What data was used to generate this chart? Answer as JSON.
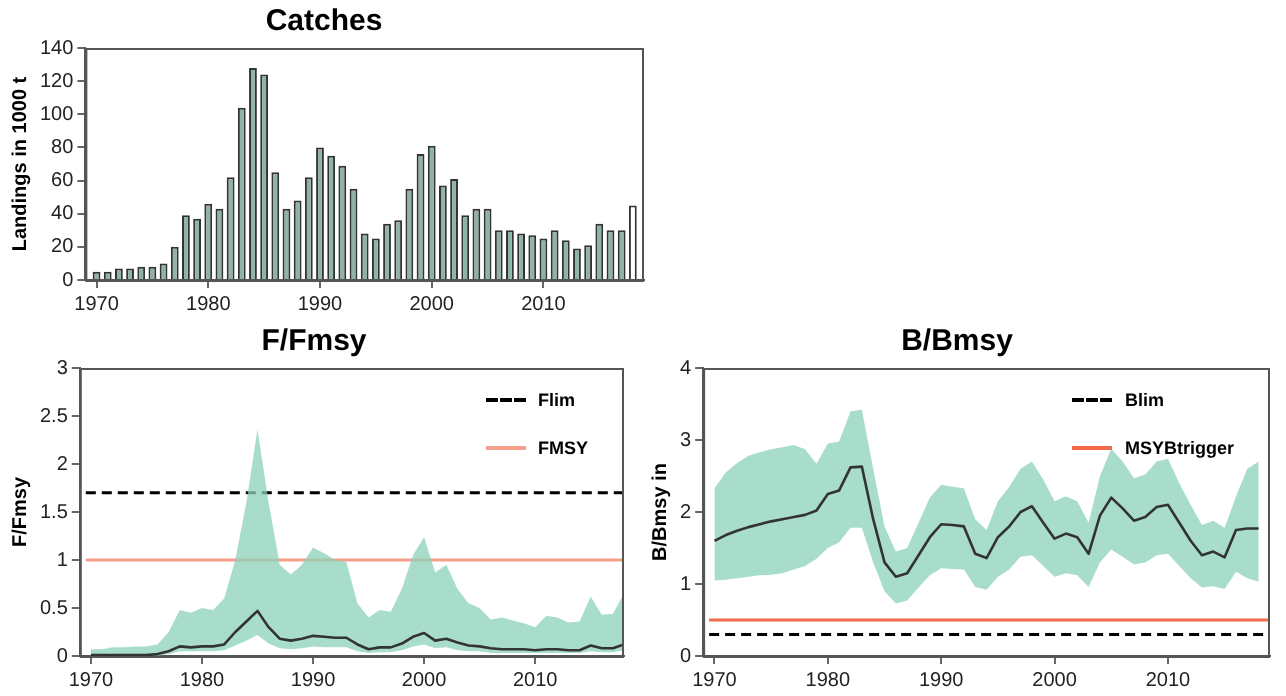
{
  "chart_data": [
    {
      "type": "bar",
      "title": "Catches",
      "ylabel": "Landings in 1000 t",
      "grid": false,
      "x": [
        1970,
        1971,
        1972,
        1973,
        1974,
        1975,
        1976,
        1977,
        1978,
        1979,
        1980,
        1981,
        1982,
        1983,
        1984,
        1985,
        1986,
        1987,
        1988,
        1989,
        1990,
        1991,
        1992,
        1993,
        1994,
        1995,
        1996,
        1997,
        1998,
        1999,
        2000,
        2001,
        2002,
        2003,
        2004,
        2005,
        2006,
        2007,
        2008,
        2009,
        2010,
        2011,
        2012,
        2013,
        2014,
        2015,
        2016,
        2017,
        2018
      ],
      "values": [
        5,
        5,
        7,
        7,
        8,
        8,
        10,
        20,
        39,
        37,
        46,
        43,
        62,
        104,
        128,
        124,
        65,
        43,
        48,
        62,
        80,
        75,
        69,
        55,
        28,
        25,
        34,
        36,
        55,
        76,
        81,
        57,
        61,
        39,
        43,
        43,
        30,
        30,
        28,
        27,
        25,
        30,
        24,
        19,
        21,
        34,
        30,
        30,
        45
      ],
      "colors": [
        "#8fb3a5",
        "#8fb3a5",
        "#8fb3a5",
        "#8fb3a5",
        "#8fb3a5",
        "#8fb3a5",
        "#8fb3a5",
        "#8fb3a5",
        "#8fb3a5",
        "#8fb3a5",
        "#8fb3a5",
        "#8fb3a5",
        "#8fb3a5",
        "#8fb3a5",
        "#8fb3a5",
        "#8fb3a5",
        "#8fb3a5",
        "#8fb3a5",
        "#8fb3a5",
        "#8fb3a5",
        "#8fb3a5",
        "#8fb3a5",
        "#8fb3a5",
        "#8fb3a5",
        "#8fb3a5",
        "#8fb3a5",
        "#8fb3a5",
        "#8fb3a5",
        "#8fb3a5",
        "#8fb3a5",
        "#8fb3a5",
        "#8fb3a5",
        "#8fb3a5",
        "#8fb3a5",
        "#8fb3a5",
        "#8fb3a5",
        "#8fb3a5",
        "#8fb3a5",
        "#8fb3a5",
        "#8fb3a5",
        "#8fb3a5",
        "#8fb3a5",
        "#8fb3a5",
        "#8fb3a5",
        "#8fb3a5",
        "#8fb3a5",
        "#8fb3a5",
        "#8fb3a5",
        "#ffffff"
      ],
      "xlim": [
        1969,
        2019
      ],
      "xticks": [
        1970,
        1980,
        1990,
        2000,
        2010
      ],
      "ylim": [
        0,
        140
      ],
      "yticks": [
        0,
        20,
        40,
        60,
        80,
        100,
        120,
        140
      ]
    },
    {
      "type": "line",
      "title": "F/Fmsy",
      "ylabel": "F/Fmsy",
      "grid": false,
      "legend": "top right",
      "marker": "none",
      "x": [
        1970,
        1971,
        1972,
        1973,
        1974,
        1975,
        1976,
        1977,
        1978,
        1979,
        1980,
        1981,
        1982,
        1983,
        1984,
        1985,
        1986,
        1987,
        1988,
        1989,
        1990,
        1991,
        1992,
        1993,
        1994,
        1995,
        1996,
        1997,
        1998,
        1999,
        2000,
        2001,
        2002,
        2003,
        2004,
        2005,
        2006,
        2007,
        2008,
        2009,
        2010,
        2011,
        2012,
        2013,
        2014,
        2015,
        2016,
        2017,
        2018
      ],
      "series": [
        {
          "color": "#333333",
          "values": [
            0.01,
            0.01,
            0.01,
            0.01,
            0.01,
            0.01,
            0.02,
            0.05,
            0.1,
            0.09,
            0.1,
            0.1,
            0.12,
            0.25,
            0.36,
            0.47,
            0.3,
            0.18,
            0.16,
            0.18,
            0.21,
            0.2,
            0.19,
            0.19,
            0.12,
            0.07,
            0.09,
            0.09,
            0.13,
            0.2,
            0.24,
            0.16,
            0.18,
            0.14,
            0.11,
            0.1,
            0.08,
            0.07,
            0.07,
            0.07,
            0.06,
            0.07,
            0.07,
            0.06,
            0.06,
            0.11,
            0.08,
            0.08,
            0.12
          ],
          "lower": [
            0,
            0,
            0,
            0,
            0,
            0,
            0,
            0.02,
            0.05,
            0.05,
            0.05,
            0.05,
            0.06,
            0.11,
            0.16,
            0.22,
            0.13,
            0.08,
            0.07,
            0.08,
            0.1,
            0.09,
            0.09,
            0.09,
            0.05,
            0.03,
            0.04,
            0.04,
            0.06,
            0.1,
            0.12,
            0.08,
            0.09,
            0.06,
            0.05,
            0.05,
            0.03,
            0.03,
            0.03,
            0.03,
            0.03,
            0.03,
            0.03,
            0.03,
            0.03,
            0.05,
            0.04,
            0.04,
            0.06
          ],
          "upper": [
            0.07,
            0.07,
            0.09,
            0.09,
            0.1,
            0.1,
            0.12,
            0.25,
            0.48,
            0.45,
            0.5,
            0.48,
            0.6,
            1.0,
            1.6,
            2.36,
            1.6,
            0.95,
            0.85,
            0.95,
            1.13,
            1.07,
            1.0,
            0.98,
            0.55,
            0.4,
            0.48,
            0.46,
            0.7,
            1.05,
            1.24,
            0.87,
            0.95,
            0.7,
            0.55,
            0.5,
            0.38,
            0.4,
            0.37,
            0.34,
            0.3,
            0.42,
            0.4,
            0.35,
            0.36,
            0.62,
            0.43,
            0.44,
            0.65
          ]
        }
      ],
      "ref_lines": [
        {
          "axis": "y",
          "value": 1.7,
          "label": "Flim",
          "color": "#000000",
          "line_style": "dashed"
        },
        {
          "axis": "y",
          "value": 1,
          "label": "FMSY",
          "color": "#f4a08a",
          "line_style": "solid"
        }
      ],
      "xlim": [
        1969,
        2018
      ],
      "xticks": [
        1970,
        1980,
        1990,
        2000,
        2010
      ],
      "ylim": [
        0,
        3
      ],
      "yticks": [
        0,
        0.5,
        1,
        1.5,
        2,
        2.5,
        3
      ]
    },
    {
      "type": "line",
      "title": "B/Bmsy",
      "ylabel": "B/Bmsy in",
      "grid": false,
      "legend": "top right",
      "marker": "none",
      "x": [
        1970,
        1971,
        1972,
        1973,
        1974,
        1975,
        1976,
        1977,
        1978,
        1979,
        1980,
        1981,
        1982,
        1983,
        1984,
        1985,
        1986,
        1987,
        1988,
        1989,
        1990,
        1991,
        1992,
        1993,
        1994,
        1995,
        1996,
        1997,
        1998,
        1999,
        2000,
        2001,
        2002,
        2003,
        2004,
        2005,
        2006,
        2007,
        2008,
        2009,
        2010,
        2011,
        2012,
        2013,
        2014,
        2015,
        2016,
        2017,
        2018
      ],
      "series": [
        {
          "color": "#333333",
          "values": [
            1.6,
            1.68,
            1.74,
            1.79,
            1.83,
            1.87,
            1.9,
            1.93,
            1.96,
            2.02,
            2.25,
            2.3,
            2.62,
            2.63,
            1.9,
            1.3,
            1.1,
            1.15,
            1.4,
            1.65,
            1.83,
            1.82,
            1.8,
            1.42,
            1.36,
            1.65,
            1.8,
            2.0,
            2.08,
            1.85,
            1.63,
            1.7,
            1.65,
            1.42,
            1.95,
            2.2,
            2.05,
            1.88,
            1.93,
            2.07,
            2.1,
            1.85,
            1.6,
            1.4,
            1.45,
            1.37,
            1.75,
            1.77,
            1.77
          ],
          "lower": [
            1.05,
            1.06,
            1.08,
            1.1,
            1.12,
            1.13,
            1.15,
            1.2,
            1.25,
            1.35,
            1.5,
            1.58,
            1.78,
            1.78,
            1.3,
            0.9,
            0.73,
            0.77,
            0.95,
            1.12,
            1.22,
            1.21,
            1.2,
            0.96,
            0.92,
            1.1,
            1.2,
            1.38,
            1.4,
            1.25,
            1.1,
            1.15,
            1.12,
            0.96,
            1.3,
            1.48,
            1.38,
            1.27,
            1.3,
            1.4,
            1.42,
            1.25,
            1.08,
            0.95,
            0.97,
            0.93,
            1.17,
            1.08,
            1.03
          ],
          "upper": [
            2.33,
            2.55,
            2.68,
            2.78,
            2.83,
            2.87,
            2.9,
            2.93,
            2.87,
            2.67,
            2.95,
            2.98,
            3.4,
            3.42,
            2.6,
            1.8,
            1.45,
            1.5,
            1.85,
            2.2,
            2.38,
            2.35,
            2.33,
            1.9,
            1.75,
            2.15,
            2.35,
            2.6,
            2.7,
            2.45,
            2.15,
            2.22,
            2.15,
            1.85,
            2.5,
            2.88,
            2.7,
            2.47,
            2.52,
            2.7,
            2.74,
            2.4,
            2.1,
            1.82,
            1.88,
            1.78,
            2.22,
            2.6,
            2.7
          ]
        }
      ],
      "ref_lines": [
        {
          "axis": "y",
          "value": 0.3,
          "label": "Blim",
          "color": "#000000",
          "line_style": "dashed"
        },
        {
          "axis": "y",
          "value": 0.5,
          "label": "MSYBtrigger",
          "color": "#f26b4a",
          "line_style": "solid"
        }
      ],
      "xlim": [
        1969,
        2019
      ],
      "xticks": [
        1970,
        1980,
        1990,
        2000,
        2010
      ],
      "ylim": [
        0,
        4
      ],
      "yticks": [
        0,
        1,
        2,
        3,
        4
      ]
    }
  ]
}
